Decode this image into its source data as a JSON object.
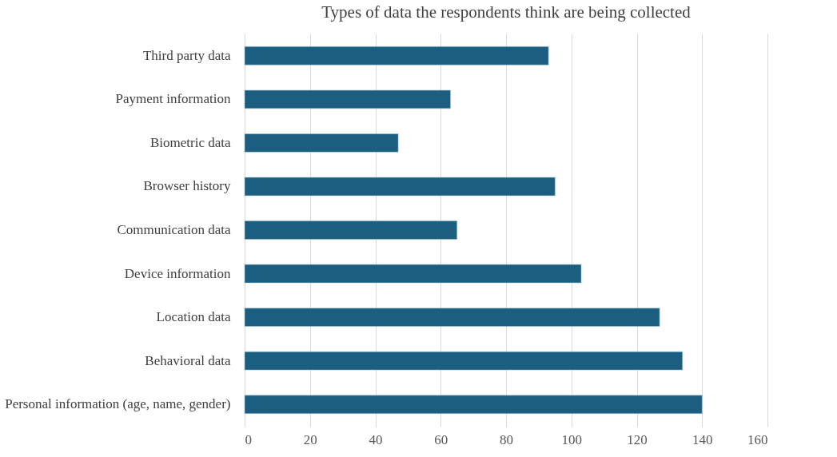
{
  "chart_data": {
    "type": "bar",
    "orientation": "horizontal",
    "title": "Types of data the respondents think are being collected",
    "categories": [
      "Third party data",
      "Payment information",
      "Biometric data",
      "Browser history",
      "Communication data",
      "Device information",
      "Location data",
      "Behavioral data",
      "Personal information (age, name, gender)"
    ],
    "values": [
      93,
      63,
      47,
      95,
      65,
      103,
      127,
      134,
      140
    ],
    "color": "#1b5e80",
    "xlim": [
      0,
      160
    ],
    "xticks": [
      0,
      20,
      40,
      60,
      80,
      100,
      120,
      140,
      160
    ],
    "grid": "x"
  }
}
